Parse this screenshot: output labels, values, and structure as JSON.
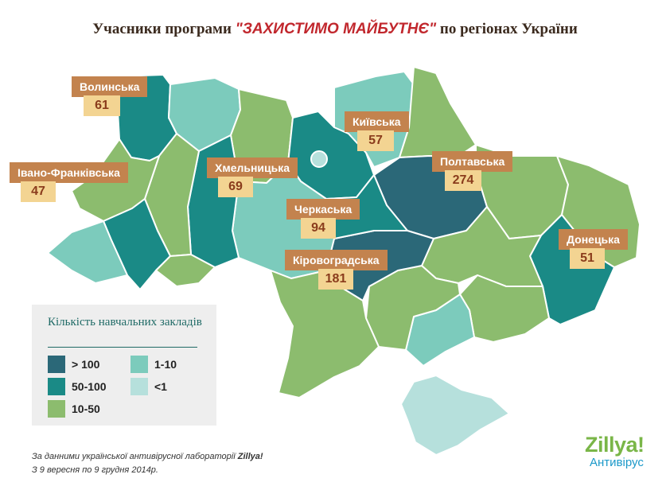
{
  "title": {
    "prefix": "Учасники програми ",
    "highlight": "\"ЗАХИСТИМО МАЙБУТНЄ\"",
    "suffix": " по регіонах України"
  },
  "colors": {
    "over_100": "#2b6878",
    "range_50_100": "#1a8a86",
    "range_10_50": "#8cbc6e",
    "range_1_10": "#7ccbbc",
    "under_1": "#b6e0dc",
    "callout_name_bg": "#c3834e",
    "callout_value_bg": "#f3d492"
  },
  "regions": [
    {
      "name": "Волинська",
      "value": "61"
    },
    {
      "name": "Київська",
      "value": "57"
    },
    {
      "name": "Полтавська",
      "value": "274"
    },
    {
      "name": "Івано-Франківська",
      "value": "47"
    },
    {
      "name": "Хмельницька",
      "value": "69"
    },
    {
      "name": "Черкаська",
      "value": "94"
    },
    {
      "name": "Кіровоградська",
      "value": "181"
    },
    {
      "name": "Донецька",
      "value": "51"
    }
  ],
  "legend": {
    "title": "Кількість навчальних закладів",
    "items": [
      {
        "label": "> 100",
        "color": "#2b6878"
      },
      {
        "label": "50-100",
        "color": "#1a8a86"
      },
      {
        "label": "10-50",
        "color": "#8cbc6e"
      },
      {
        "label": "1-10",
        "color": "#7ccbbc"
      },
      {
        "label": "<1",
        "color": "#b6e0dc"
      }
    ]
  },
  "source": {
    "line1_prefix": "За данними української антивірусної лабораторії ",
    "line1_brand": "Zillya!",
    "line2": "З 9 вересня по 9 грудня 2014р."
  },
  "logo": {
    "brand": "Zillya!",
    "subtitle": "Антивірус"
  }
}
